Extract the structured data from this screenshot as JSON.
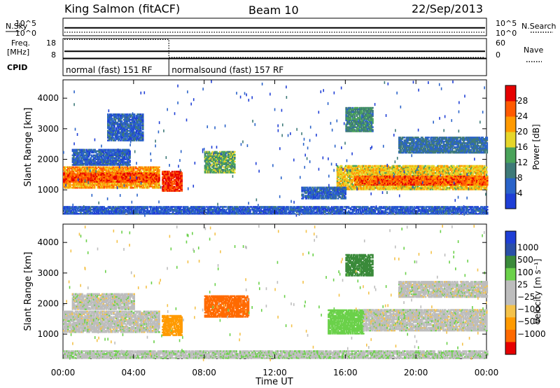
{
  "header": {
    "station": "King Salmon (fitACF)",
    "beam": "Beam 10",
    "date": "22/Sep/2013"
  },
  "colors": {
    "power_scale": [
      "#1f3fd6",
      "#2a63c9",
      "#3e7a78",
      "#4aa35a",
      "#e6d62a",
      "#ff9a00",
      "#ff5a00",
      "#e60000"
    ],
    "velocity_scale": [
      "#e60000",
      "#ff6a00",
      "#ff9a00",
      "#f4c24a",
      "#bdbdbd",
      "#bdbdbd",
      "#6bd14a",
      "#3a8a3a",
      "#2a4fa8",
      "#1f3fd6"
    ]
  },
  "chart_data": [
    {
      "type": "line",
      "name": "noise",
      "ylabel_left": "N.Sky",
      "ylabel_right": "N.Search",
      "left_ticks": [
        "10^5",
        "10^0"
      ],
      "right_ticks": [
        "10^5",
        "10^0"
      ],
      "series": [
        {
          "name": "N.Sky",
          "style": "solid",
          "level": 0.45
        },
        {
          "name": "N.Search",
          "style": "dotted",
          "level": 0.2
        }
      ]
    },
    {
      "type": "line",
      "name": "frequency-nave",
      "ylabel_left": "Freq.\n[MHz]",
      "ylabel_right": "Nave",
      "left_ticks": [
        18,
        8
      ],
      "right_ticks": [
        60,
        0
      ],
      "series": [
        {
          "name": "Freq.",
          "style": "solid",
          "level": 0.35
        },
        {
          "name": "Nave",
          "style": "dotted",
          "level_before_06": 0.95,
          "level_after_06": 0.0
        }
      ]
    },
    {
      "type": "table",
      "name": "cpid",
      "label": "CPID",
      "segments": [
        {
          "start_hour": 0,
          "end_hour": 6,
          "text": "normal (fast) 151 RF"
        },
        {
          "start_hour": 6,
          "end_hour": 24,
          "text": "normalsound (fast) 157 RF"
        }
      ]
    },
    {
      "type": "heatmap",
      "name": "power",
      "ylabel": "Slant Range [km]",
      "yticks": [
        1000,
        2000,
        3000,
        4000
      ],
      "ylim": [
        200,
        4600
      ],
      "xlim": [
        0,
        24
      ],
      "colorbar_label": "Power [dB]",
      "colorbar_ticks": [
        4,
        8,
        12,
        16,
        20,
        24,
        28
      ],
      "colorbar_range": [
        0,
        32
      ],
      "regions": [
        {
          "t0": 0.0,
          "t1": 5.4,
          "r0": 1050,
          "r1": 1750,
          "value": 22
        },
        {
          "t0": 0.0,
          "t1": 5.4,
          "r0": 1250,
          "r1": 1550,
          "value": 27
        },
        {
          "t0": 5.6,
          "t1": 6.7,
          "r0": 950,
          "r1": 1600,
          "value": 28
        },
        {
          "t0": 8.0,
          "t1": 9.7,
          "r0": 1550,
          "r1": 2250,
          "value": 14
        },
        {
          "t0": 0.5,
          "t1": 3.8,
          "r0": 1800,
          "r1": 2300,
          "value": 6
        },
        {
          "t0": 2.5,
          "t1": 4.5,
          "r0": 2600,
          "r1": 3500,
          "value": 6
        },
        {
          "t0": 15.5,
          "t1": 24.0,
          "r0": 1000,
          "r1": 1800,
          "value": 19
        },
        {
          "t0": 16.5,
          "t1": 24.0,
          "r0": 1150,
          "r1": 1450,
          "value": 26
        },
        {
          "t0": 16.0,
          "t1": 17.5,
          "r0": 2900,
          "r1": 3700,
          "value": 11
        },
        {
          "t0": 19.0,
          "t1": 24.0,
          "r0": 2200,
          "r1": 2700,
          "value": 8
        },
        {
          "t0": 13.5,
          "t1": 16.0,
          "r0": 700,
          "r1": 1100,
          "value": 6
        },
        {
          "t0": 0.0,
          "t1": 24.0,
          "r0": 200,
          "r1": 450,
          "value": 5
        }
      ]
    },
    {
      "type": "heatmap",
      "name": "velocity",
      "ylabel": "Slant Range [km]",
      "yticks": [
        1000,
        2000,
        3000,
        4000
      ],
      "ylim": [
        200,
        4600
      ],
      "xlim": [
        0,
        24
      ],
      "xticks": [
        "00:00",
        "04:00",
        "08:00",
        "12:00",
        "16:00",
        "20:00",
        "00:00"
      ],
      "xlabel": "Time UT",
      "colorbar_label": "Velocity [m s⁻¹]",
      "colorbar_ticks": [
        "1000",
        "500",
        "100",
        "25",
        "−25",
        "−100",
        "−500",
        "−1000"
      ],
      "regions": [
        {
          "t0": 0.0,
          "t1": 5.4,
          "r0": 1050,
          "r1": 1750,
          "value": 0
        },
        {
          "t0": 5.6,
          "t1": 6.7,
          "r0": 950,
          "r1": 1600,
          "value": -300
        },
        {
          "t0": 8.0,
          "t1": 10.5,
          "r0": 1550,
          "r1": 2250,
          "value": -800
        },
        {
          "t0": 0.5,
          "t1": 4.0,
          "r0": 1800,
          "r1": 2300,
          "value": 0
        },
        {
          "t0": 15.0,
          "t1": 17.0,
          "r0": 1000,
          "r1": 1800,
          "value": 60
        },
        {
          "t0": 17.0,
          "t1": 24.0,
          "r0": 1100,
          "r1": 1800,
          "value": 0
        },
        {
          "t0": 16.0,
          "t1": 17.5,
          "r0": 2900,
          "r1": 3600,
          "value": 200
        },
        {
          "t0": 19.0,
          "t1": 24.0,
          "r0": 2200,
          "r1": 2700,
          "value": 0
        },
        {
          "t0": 0.0,
          "t1": 24.0,
          "r0": 200,
          "r1": 450,
          "value": 10
        }
      ]
    }
  ]
}
